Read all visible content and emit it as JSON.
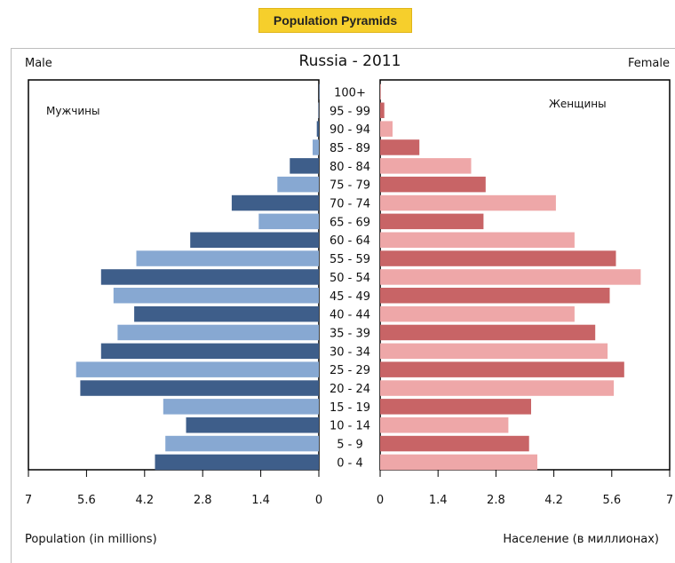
{
  "banner": {
    "label": "Population Pyramids"
  },
  "chart_data": {
    "type": "bar",
    "title": "Russia - 2011",
    "left_header": "Male",
    "right_header": "Female",
    "male_inner_label": "Мужчины",
    "female_inner_label": "Женщины",
    "xlabel_left": "Population (in millions)",
    "xlabel_right": "Население (в миллионах)",
    "xlim": [
      0,
      7
    ],
    "ticks": [
      0,
      1.4,
      2.8,
      4.2,
      5.6,
      7
    ],
    "left_tick_labels": [
      "7",
      "5.6",
      "4.2",
      "2.8",
      "1.4",
      "0"
    ],
    "right_tick_labels": [
      "0",
      "1.4",
      "2.8",
      "4.2",
      "5.6",
      "7"
    ],
    "categories": [
      "100+",
      "95 - 99",
      "90 - 94",
      "85 - 89",
      "80 - 84",
      "75 - 79",
      "70 - 74",
      "65 - 69",
      "60 - 64",
      "55 - 59",
      "50 - 54",
      "45 - 49",
      "40 - 44",
      "35 - 39",
      "30 - 34",
      "25 - 29",
      "20 - 24",
      "15 - 19",
      "10 - 14",
      "5 - 9",
      "0 - 4"
    ],
    "series": [
      {
        "name": "Male",
        "values": [
          0.0,
          0.01,
          0.05,
          0.15,
          0.7,
          1.0,
          2.1,
          1.45,
          3.1,
          4.4,
          5.25,
          4.95,
          4.45,
          4.85,
          5.25,
          5.85,
          5.75,
          3.75,
          3.2,
          3.7,
          3.95
        ]
      },
      {
        "name": "Female",
        "values": [
          0.02,
          0.1,
          0.3,
          0.95,
          2.2,
          2.55,
          4.25,
          2.5,
          4.7,
          5.7,
          6.3,
          5.55,
          4.7,
          5.2,
          5.5,
          5.9,
          5.65,
          3.65,
          3.1,
          3.6,
          3.8
        ]
      }
    ],
    "colors": {
      "male_dark": "#3e5e8a",
      "male_light": "#87a8d2",
      "female_dark": "#c86466",
      "female_light": "#eea7a8"
    },
    "grid": false,
    "legend": "none"
  }
}
